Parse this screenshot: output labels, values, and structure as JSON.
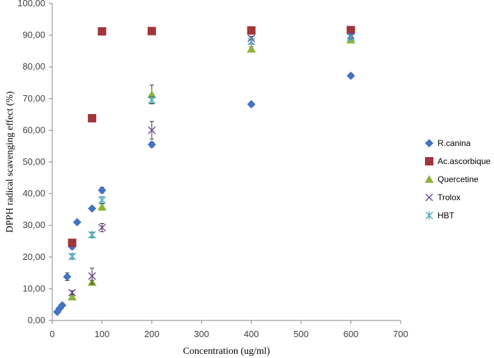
{
  "chart_data": {
    "type": "scatter",
    "title": "",
    "xlabel": "Concentration (ug/ml)",
    "ylabel": "DPPH radical scavenging  effect (%)",
    "xlim": [
      0,
      700
    ],
    "ylim": [
      0,
      100
    ],
    "x_ticks": [
      "0",
      "100",
      "200",
      "300",
      "400",
      "500",
      "600",
      "700"
    ],
    "y_ticks": [
      "0,00",
      "10,00",
      "20,00",
      "30,00",
      "40,00",
      "50,00",
      "60,00",
      "70,00",
      "80,00",
      "90,00",
      "100,00"
    ],
    "grid": false,
    "legend_position": "right",
    "series": [
      {
        "name": "R.canina",
        "marker": "diamond",
        "color": "#4472C4",
        "points": [
          {
            "x": 10,
            "y": 2.7,
            "err": 0.6
          },
          {
            "x": 15,
            "y": 3.8,
            "err": 0.5
          },
          {
            "x": 20,
            "y": 4.8,
            "err": 0.5
          },
          {
            "x": 30,
            "y": 13.8,
            "err": 1.2
          },
          {
            "x": 40,
            "y": 23.3,
            "err": 0.8
          },
          {
            "x": 50,
            "y": 31.0,
            "err": 0.5
          },
          {
            "x": 80,
            "y": 35.3,
            "err": 0.6
          },
          {
            "x": 100,
            "y": 41.1,
            "err": 0.9
          },
          {
            "x": 200,
            "y": 55.5,
            "err": 0.8
          },
          {
            "x": 400,
            "y": 68.2,
            "err": 0.7
          },
          {
            "x": 600,
            "y": 77.2,
            "err": 0.7
          }
        ]
      },
      {
        "name": "Ac.ascorbique",
        "marker": "square",
        "color": "#A0353A",
        "points": [
          {
            "x": 40,
            "y": 24.5,
            "err": 0.5
          },
          {
            "x": 80,
            "y": 63.8,
            "err": 0.4
          },
          {
            "x": 100,
            "y": 91.2,
            "err": 0.4
          },
          {
            "x": 200,
            "y": 91.3,
            "err": 0.4
          },
          {
            "x": 400,
            "y": 91.5,
            "err": 0.4
          },
          {
            "x": 600,
            "y": 91.6,
            "err": 0.4
          }
        ]
      },
      {
        "name": "Quercetine",
        "marker": "triangle",
        "color": "#8DB33B",
        "points": [
          {
            "x": 40,
            "y": 7.4,
            "err": 0.6
          },
          {
            "x": 80,
            "y": 12.0,
            "err": 0.6
          },
          {
            "x": 100,
            "y": 35.8,
            "err": 1.0
          },
          {
            "x": 200,
            "y": 71.3,
            "err": 3.0
          },
          {
            "x": 400,
            "y": 85.6,
            "err": 0.8
          },
          {
            "x": 600,
            "y": 88.5,
            "err": 0.6
          }
        ]
      },
      {
        "name": "Trolox",
        "marker": "x",
        "color": "#6B4C9A",
        "points": [
          {
            "x": 40,
            "y": 8.8,
            "err": 0.6
          },
          {
            "x": 80,
            "y": 14.0,
            "err": 2.5
          },
          {
            "x": 100,
            "y": 29.3,
            "err": 1.3
          },
          {
            "x": 200,
            "y": 60.0,
            "err": 2.8
          },
          {
            "x": 400,
            "y": 89.0,
            "err": 0.6
          },
          {
            "x": 600,
            "y": 89.9,
            "err": 0.6
          }
        ]
      },
      {
        "name": "HBT",
        "marker": "star",
        "color": "#4BACC6",
        "points": [
          {
            "x": 40,
            "y": 20.2,
            "err": 0.8
          },
          {
            "x": 80,
            "y": 27.0,
            "err": 0.8
          },
          {
            "x": 100,
            "y": 38.0,
            "err": 1.0
          },
          {
            "x": 200,
            "y": 69.5,
            "err": 1.0
          },
          {
            "x": 400,
            "y": 88.0,
            "err": 0.8
          },
          {
            "x": 600,
            "y": 89.3,
            "err": 0.6
          }
        ]
      }
    ]
  }
}
